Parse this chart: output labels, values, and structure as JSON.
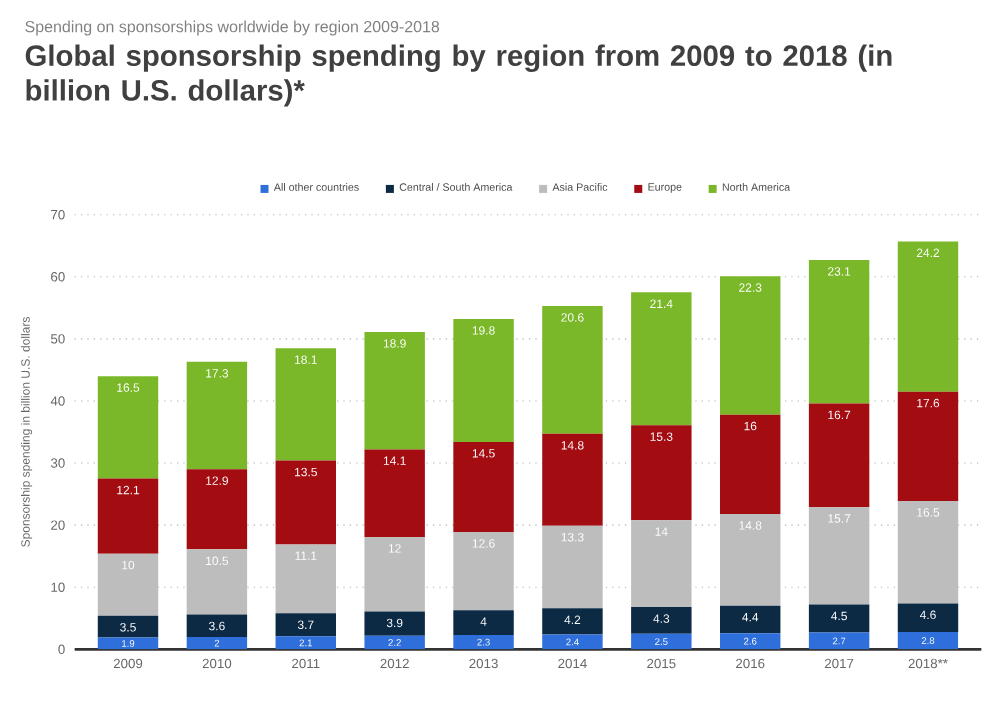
{
  "chart_data": {
    "type": "bar",
    "stacked": true,
    "subtitle": "Spending on sponsorships worldwide by region 2009-2018",
    "title": "Global sponsorship spending by region from 2009 to 2018 (in billion U.S. dollars)*",
    "ylabel": "Sponsorship spending in billion U.S. dollars",
    "categories": [
      "2009",
      "2010",
      "2011",
      "2012",
      "2013",
      "2014",
      "2015",
      "2016",
      "2017",
      "2018**"
    ],
    "series": [
      {
        "name": "All other countries",
        "color": "#2f6fdb",
        "values": [
          1.9,
          2,
          2.1,
          2.2,
          2.3,
          2.4,
          2.5,
          2.6,
          2.7,
          2.8
        ]
      },
      {
        "name": "Central / South America",
        "color": "#0d2a45",
        "values": [
          3.5,
          3.6,
          3.7,
          3.9,
          4,
          4.2,
          4.3,
          4.4,
          4.5,
          4.6
        ]
      },
      {
        "name": "Asia Pacific",
        "color": "#bdbdbd",
        "values": [
          10,
          10.5,
          11.1,
          12,
          12.6,
          13.3,
          14,
          14.8,
          15.7,
          16.5
        ]
      },
      {
        "name": "Europe",
        "color": "#a30d12",
        "values": [
          12.1,
          12.9,
          13.5,
          14.1,
          14.5,
          14.8,
          15.3,
          16,
          16.7,
          17.6
        ]
      },
      {
        "name": "North America",
        "color": "#7bb829",
        "values": [
          16.5,
          17.3,
          18.1,
          18.9,
          19.8,
          20.6,
          21.4,
          22.3,
          23.1,
          24.2
        ]
      }
    ],
    "ylim": [
      0,
      70
    ],
    "yticks": [
      0,
      10,
      20,
      30,
      40,
      50,
      60,
      70
    ],
    "grid": "y",
    "legend": "top",
    "data_labels": true
  }
}
